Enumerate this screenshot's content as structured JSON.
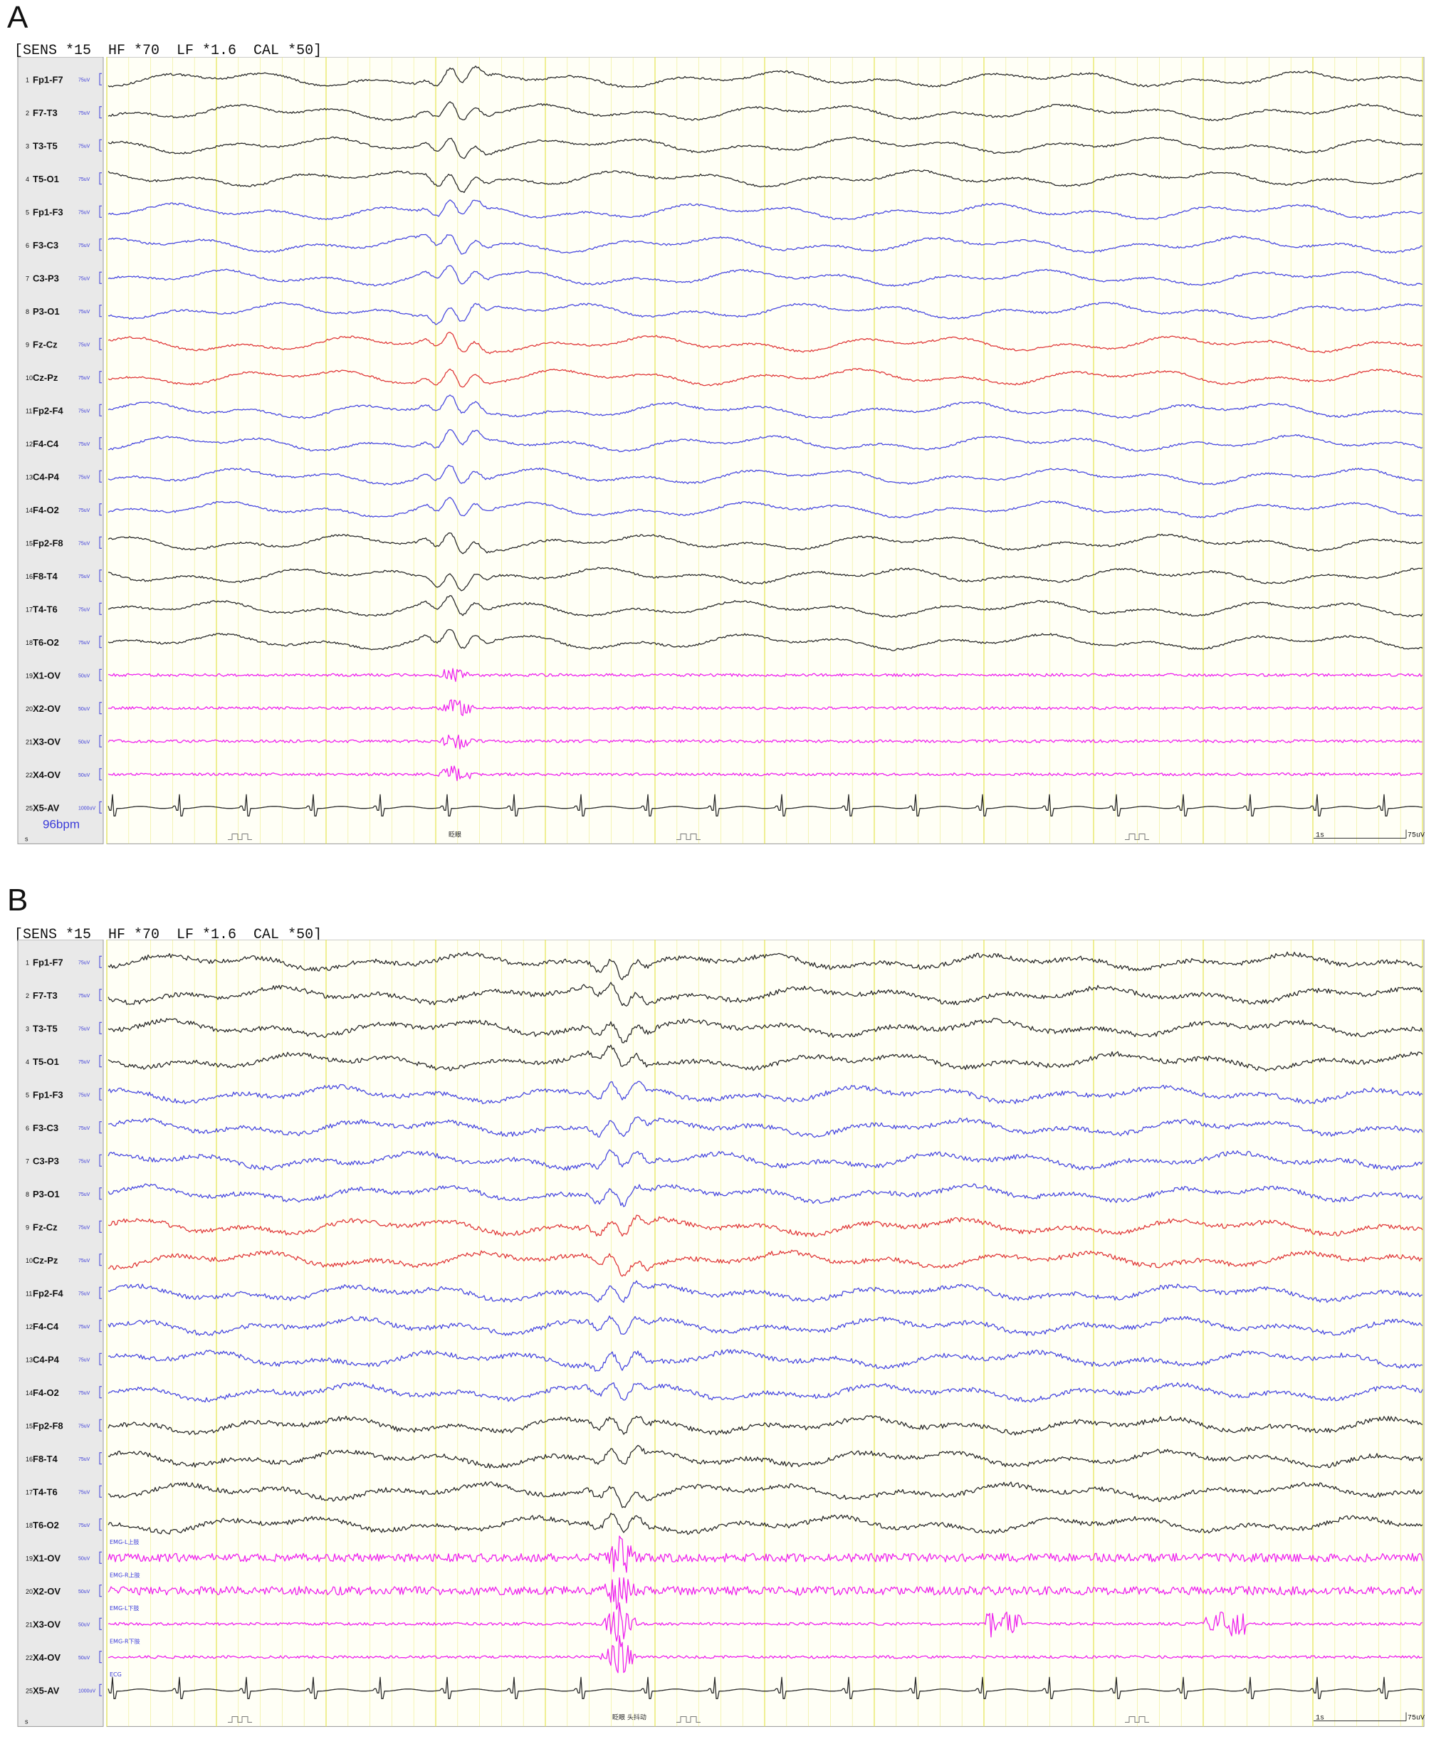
{
  "colors": {
    "black": "#2b2b2b",
    "blue": "#4a4ae0",
    "red": "#e03a3a",
    "magenta": "#ee22ee",
    "grid": "#e6e65a",
    "label_bg": "#e9e9e9"
  },
  "panels": [
    {
      "letter": "A",
      "header": "[SENS *15  HF *70  LF *1.6  CAL *50]",
      "bpm": "96bpm",
      "event_marker": "眨眼",
      "scale_time": "1s",
      "scale_amp": "75uV",
      "bottom_row_label": "s",
      "emg_labels": []
    },
    {
      "letter": "B",
      "header": "[SENS *15  HF *70  LF *1.6  CAL *50]",
      "bpm": "",
      "event_marker": "眨眼 头抖动",
      "scale_time": "1s",
      "scale_amp": "75uV",
      "bottom_row_label": "s",
      "emg_labels": [
        "EMG-L上肢",
        "EMG-R上肢",
        "EMG-L下肢",
        "EMG-R下肢",
        "ECG"
      ]
    }
  ],
  "channels": [
    {
      "num": "1",
      "name": "Fp1-F7",
      "unit": "75uV",
      "color": "black"
    },
    {
      "num": "2",
      "name": "F7-T3",
      "unit": "75uV",
      "color": "black"
    },
    {
      "num": "3",
      "name": "T3-T5",
      "unit": "75uV",
      "color": "black"
    },
    {
      "num": "4",
      "name": "T5-O1",
      "unit": "75uV",
      "color": "black"
    },
    {
      "num": "5",
      "name": "Fp1-F3",
      "unit": "75uV",
      "color": "blue"
    },
    {
      "num": "6",
      "name": "F3-C3",
      "unit": "75uV",
      "color": "blue"
    },
    {
      "num": "7",
      "name": "C3-P3",
      "unit": "75uV",
      "color": "blue"
    },
    {
      "num": "8",
      "name": "P3-O1",
      "unit": "75uV",
      "color": "blue"
    },
    {
      "num": "9",
      "name": "Fz-Cz",
      "unit": "75uV",
      "color": "red"
    },
    {
      "num": "10",
      "name": "Cz-Pz",
      "unit": "75uV",
      "color": "red"
    },
    {
      "num": "11",
      "name": "Fp2-F4",
      "unit": "75uV",
      "color": "blue"
    },
    {
      "num": "12",
      "name": "F4-C4",
      "unit": "75uV",
      "color": "blue"
    },
    {
      "num": "13",
      "name": "C4-P4",
      "unit": "75uV",
      "color": "blue"
    },
    {
      "num": "14",
      "name": "F4-O2",
      "unit": "75uV",
      "color": "blue"
    },
    {
      "num": "15",
      "name": "Fp2-F8",
      "unit": "75uV",
      "color": "black"
    },
    {
      "num": "16",
      "name": "F8-T4",
      "unit": "75uV",
      "color": "black"
    },
    {
      "num": "17",
      "name": "T4-T6",
      "unit": "75uV",
      "color": "black"
    },
    {
      "num": "18",
      "name": "T6-O2",
      "unit": "75uV",
      "color": "black"
    },
    {
      "num": "19",
      "name": "X1-OV",
      "unit": "50uV",
      "color": "magenta"
    },
    {
      "num": "20",
      "name": "X2-OV",
      "unit": "50uV",
      "color": "magenta"
    },
    {
      "num": "21",
      "name": "X3-OV",
      "unit": "50uV",
      "color": "magenta"
    },
    {
      "num": "22",
      "name": "X4-OV",
      "unit": "50uV",
      "color": "magenta"
    },
    {
      "num": "25",
      "name": "X5-AV",
      "unit": "1000uV",
      "color": "black"
    }
  ],
  "chart_data": [
    {
      "type": "line",
      "panel": "A",
      "series": [
        "Fp1-F7",
        "F7-T3",
        "T3-T5",
        "T5-O1",
        "Fp1-F3",
        "F3-C3",
        "C3-P3",
        "P3-O1",
        "Fz-Cz",
        "Cz-Pz",
        "Fp2-F4",
        "F4-C4",
        "C4-P4",
        "F4-O2",
        "Fp2-F8",
        "F8-T4",
        "T4-T6",
        "T6-O2",
        "X1-OV",
        "X2-OV",
        "X3-OV",
        "X4-OV",
        "X5-AV"
      ],
      "sensitivity": "15",
      "high_filter": "70",
      "low_filter": "1.6",
      "calibration": "50",
      "heart_rate": "96bpm",
      "scale_bar": {
        "time": "1s",
        "amplitude": "75uV"
      },
      "grid": true
    },
    {
      "type": "line",
      "panel": "B",
      "series": [
        "Fp1-F7",
        "F7-T3",
        "T3-T5",
        "T5-O1",
        "Fp1-F3",
        "F3-C3",
        "C3-P3",
        "P3-O1",
        "Fz-Cz",
        "Cz-Pz",
        "Fp2-F4",
        "F4-C4",
        "C4-P4",
        "F4-O2",
        "Fp2-F8",
        "F8-T4",
        "T4-T6",
        "T6-O2",
        "X1-OV",
        "X2-OV",
        "X3-OV",
        "X4-OV",
        "X5-AV"
      ],
      "sensitivity": "15",
      "high_filter": "70",
      "low_filter": "1.6",
      "calibration": "50",
      "scale_bar": {
        "time": "1s",
        "amplitude": "75uV"
      },
      "grid": true
    }
  ]
}
